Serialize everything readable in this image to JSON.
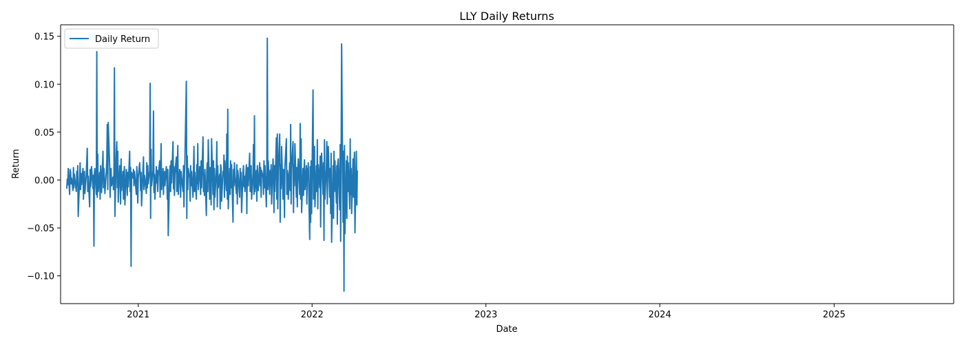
{
  "chart_data": {
    "type": "line",
    "title": "LLY Daily Returns",
    "xlabel": "Date",
    "ylabel": "Return",
    "xlim": [
      "2020-07-22",
      "2025-09-09"
    ],
    "ylim": [
      -0.129,
      0.162
    ],
    "x_ticks": [
      "2021-01-01",
      "2022-01-01",
      "2023-01-01",
      "2024-01-01",
      "2025-01-01"
    ],
    "x_tick_labels": [
      "2021",
      "2022",
      "2023",
      "2024",
      "2025"
    ],
    "y_ticks": [
      -0.1,
      -0.05,
      0.0,
      0.05,
      0.1,
      0.15
    ],
    "y_tick_labels": [
      "−0.10",
      "−0.05",
      "0.00",
      "0.05",
      "0.10",
      "0.15"
    ],
    "grid": false,
    "legend": {
      "position": "top-left",
      "entries": [
        "Daily Return"
      ]
    },
    "series": [
      {
        "name": "Daily Return",
        "color": "#1f77b4",
        "start_date": "2020-08-04",
        "frequency": "business-day",
        "values": [
          -0.009,
          0.001,
          -0.005,
          0.012,
          -0.015,
          0.011,
          0.008,
          -0.004,
          0.002,
          -0.011,
          0.013,
          -0.008,
          0.006,
          0.001,
          -0.012,
          0.009,
          -0.006,
          0.015,
          -0.038,
          0.004,
          0.018,
          -0.01,
          0.007,
          -0.005,
          0.012,
          -0.02,
          0.003,
          0.009,
          -0.014,
          0.006,
          0.021,
          0.033,
          -0.012,
          0.004,
          -0.028,
          0.011,
          -0.007,
          0.002,
          0.014,
          -0.009,
          0.005,
          -0.069,
          0.006,
          0.012,
          -0.015,
          0.134,
          -0.018,
          0.027,
          -0.012,
          0.008,
          -0.02,
          0.015,
          0.004,
          -0.013,
          0.03,
          -0.008,
          0.012,
          0.002,
          -0.014,
          0.009,
          0.021,
          0.058,
          -0.01,
          0.06,
          0.015,
          -0.018,
          0.006,
          0.012,
          -0.006,
          0.003,
          -0.01,
          0.007,
          0.117,
          -0.038,
          0.028,
          0.04,
          -0.008,
          0.03,
          -0.023,
          0.015,
          0.004,
          -0.025,
          0.022,
          -0.011,
          0.009,
          -0.02,
          0.006,
          0.014,
          -0.026,
          0.011,
          0.003,
          -0.016,
          0.008,
          -0.007,
          0.03,
          -0.012,
          0.013,
          -0.09,
          0.008,
          0.002,
          0.011,
          -0.006,
          0.009,
          0.004,
          -0.015,
          0.014,
          0.003,
          -0.024,
          0.002,
          0.018,
          0.006,
          -0.011,
          0.008,
          -0.027,
          0.012,
          0.024,
          -0.01,
          0.005,
          0.002,
          -0.014,
          0.018,
          -0.008,
          0.015,
          -0.004,
          0.01,
          0.101,
          -0.04,
          0.032,
          -0.006,
          0.01,
          0.072,
          -0.013,
          0.006,
          -0.02,
          0.014,
          -0.003,
          0.01,
          -0.012,
          0.004,
          0.02,
          -0.018,
          0.007,
          0.038,
          -0.01,
          0.012,
          -0.015,
          0.005,
          0.009,
          -0.006,
          0.014,
          0.004,
          -0.02,
          0.011,
          -0.058,
          0.008,
          0.015,
          -0.012,
          0.02,
          -0.003,
          0.04,
          -0.009,
          0.014,
          -0.016,
          0.006,
          0.024,
          -0.012,
          0.007,
          0.036,
          -0.015,
          0.011,
          0.004,
          -0.018,
          0.009,
          0.003,
          -0.012,
          0.015,
          -0.028,
          0.006,
          0.02,
          0.103,
          -0.04,
          0.025,
          -0.01,
          0.012,
          0.002,
          -0.022,
          0.015,
          -0.006,
          0.009,
          -0.018,
          0.011,
          0.035,
          -0.012,
          0.008,
          -0.02,
          0.016,
          -0.004,
          0.038,
          -0.01,
          0.014,
          0.003,
          -0.015,
          0.02,
          -0.008,
          0.045,
          -0.012,
          0.006,
          -0.016,
          0.011,
          -0.037,
          0.009,
          0.018,
          -0.012,
          0.042,
          -0.02,
          0.013,
          0.005,
          -0.026,
          0.043,
          -0.015,
          0.02,
          -0.031,
          0.012,
          -0.018,
          0.01,
          0.04,
          -0.028,
          0.015,
          -0.008,
          0.006,
          -0.03,
          0.016,
          0.012,
          -0.022,
          0.009,
          0.004,
          0.026,
          -0.018,
          0.02,
          -0.011,
          0.048,
          -0.02,
          0.074,
          -0.03,
          0.012,
          -0.015,
          0.02,
          -0.008,
          0.016,
          -0.044,
          0.011,
          -0.006,
          0.018,
          0.004,
          -0.014,
          0.016,
          -0.025,
          0.01,
          0.004,
          -0.018,
          0.012,
          -0.005,
          0.008,
          -0.034,
          0.009,
          0.015,
          -0.007,
          0.004,
          -0.012,
          0.016,
          -0.035,
          0.008,
          0.013,
          -0.006,
          0.028,
          -0.012,
          0.003,
          0.015,
          -0.02,
          0.007,
          0.037,
          -0.015,
          0.067,
          -0.012,
          0.01,
          -0.022,
          0.015,
          0.004,
          -0.011,
          0.018,
          -0.006,
          0.013,
          -0.018,
          0.01,
          0.003,
          -0.015,
          0.02,
          -0.008,
          0.015,
          -0.028,
          0.012,
          0.148,
          -0.01,
          0.02,
          -0.015,
          0.01,
          -0.006,
          0.016,
          -0.025,
          0.022,
          0.01,
          -0.034,
          0.015,
          -0.012,
          0.044,
          -0.02,
          0.048,
          -0.03,
          0.01,
          0.048,
          -0.044,
          0.016,
          -0.009,
          0.035,
          -0.02,
          0.011,
          0.004,
          -0.039,
          0.014,
          0.043,
          -0.015,
          0.01,
          0.006,
          -0.02,
          0.018,
          -0.011,
          0.058,
          -0.025,
          0.012,
          0.04,
          -0.034,
          0.016,
          -0.006,
          0.038,
          -0.018,
          0.013,
          -0.028,
          0.01,
          0.022,
          -0.015,
          0.059,
          -0.02,
          0.043,
          -0.034,
          0.012,
          -0.016,
          0.008,
          0.021,
          -0.01,
          0.015,
          -0.025,
          0.012,
          0.004,
          0.018,
          -0.062,
          0.014,
          -0.044,
          0.02,
          -0.035,
          0.094,
          -0.02,
          0.01,
          0.035,
          -0.028,
          0.015,
          -0.012,
          0.042,
          -0.03,
          0.016,
          -0.008,
          0.025,
          -0.049,
          0.012,
          0.028,
          -0.015,
          0.018,
          -0.063,
          0.042,
          -0.02,
          0.013,
          0.04,
          -0.025,
          0.01,
          0.035,
          -0.018,
          0.012,
          -0.035,
          0.028,
          -0.065,
          0.015,
          -0.04,
          0.03,
          -0.012,
          0.02,
          -0.024,
          0.015,
          -0.046,
          0.018,
          0.022,
          -0.031,
          0.037,
          -0.064,
          0.02,
          0.142,
          -0.044,
          0.03,
          -0.116,
          0.036,
          -0.056,
          0.02,
          -0.04,
          0.025,
          -0.012,
          0.018,
          -0.03,
          0.043,
          -0.015,
          0.012,
          -0.035,
          0.022,
          -0.018,
          0.015,
          0.029,
          -0.055,
          0.03,
          -0.026,
          0.01
        ]
      }
    ]
  }
}
